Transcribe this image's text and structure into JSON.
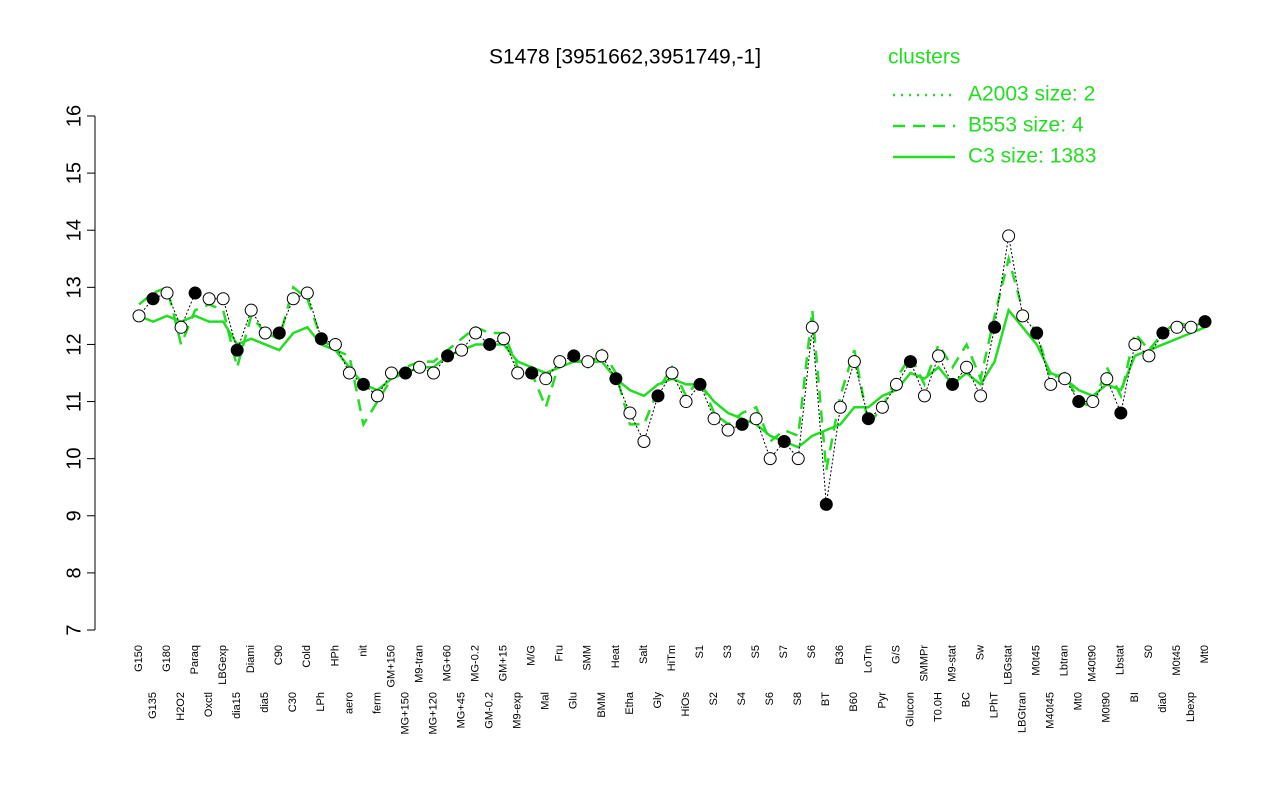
{
  "chart_data": {
    "type": "line",
    "title": "S1478 [3951662,3951749,-1]",
    "legend_title": "clusters",
    "legend_position": "top-right",
    "ylim": [
      7,
      16
    ],
    "yticks": [
      7,
      8,
      9,
      10,
      11,
      12,
      13,
      14,
      15,
      16
    ],
    "categories": [
      "G150",
      "G135",
      "G180",
      "H2O2",
      "Paraq",
      "Oxctl",
      "LBGexp",
      "dia15",
      "Diami",
      "dia5",
      "C90",
      "C30",
      "Cold",
      "LPh",
      "HPh",
      "aero",
      "nit",
      "ferm",
      "GM+150",
      "MG+150",
      "M9-tran",
      "MG+120",
      "MG+60",
      "MG+45",
      "MG-0.2",
      "GM-0.2",
      "GM+15",
      "M9-exp",
      "M/G",
      "Mal",
      "Fru",
      "Glu",
      "SMM",
      "BMM",
      "Heat",
      "Etha",
      "Salt",
      "Gly",
      "HiTm",
      "HiOs",
      "S1",
      "S2",
      "S3",
      "S4",
      "S5",
      "S6",
      "S7",
      "S8",
      "S6",
      "BT",
      "B36",
      "B60",
      "LoTm",
      "Pyr",
      "G/S",
      "Glucon",
      "SMMPr",
      "T0.0H",
      "M9-stat",
      "BC",
      "Sw",
      "LPhT",
      "LBGstat",
      "LBGtran",
      "M0t45",
      "M40t45",
      "Lbtran",
      "Mt0",
      "M40t90",
      "M0t90",
      "Lbstat",
      "BI",
      "S0",
      "dia0",
      "M0t45",
      "Lbexp",
      "Mt0"
    ],
    "values": [
      12.5,
      12.8,
      12.9,
      12.3,
      12.9,
      12.8,
      12.8,
      11.9,
      12.6,
      12.2,
      12.2,
      12.8,
      12.9,
      12.1,
      12.0,
      11.5,
      11.3,
      11.1,
      11.5,
      11.5,
      11.6,
      11.5,
      11.8,
      11.9,
      12.2,
      12.0,
      12.1,
      11.5,
      11.5,
      11.4,
      11.7,
      11.8,
      11.7,
      11.8,
      11.4,
      10.8,
      10.3,
      11.1,
      11.5,
      11.0,
      11.3,
      10.7,
      10.5,
      10.6,
      10.7,
      10.0,
      10.3,
      10.0,
      12.3,
      9.2,
      10.9,
      11.7,
      10.7,
      10.9,
      11.3,
      11.7,
      11.1,
      11.8,
      11.3,
      11.6,
      11.1,
      12.3,
      13.9,
      12.5,
      12.2,
      11.3,
      11.4,
      11.0,
      11.0,
      11.4,
      10.8,
      12.0,
      11.8,
      12.2,
      12.3,
      12.3,
      12.4
    ],
    "point_color": "#000000",
    "series": [
      {
        "name": "A2003 size: 2",
        "color": "#22dd22",
        "style": "dotted"
      },
      {
        "name": "B553 size: 4",
        "color": "#22dd22",
        "style": "dashed",
        "values": [
          12.7,
          12.9,
          13.0,
          12.0,
          12.6,
          12.7,
          12.6,
          11.6,
          12.5,
          12.2,
          12.1,
          13.0,
          12.8,
          12.1,
          11.9,
          11.8,
          10.6,
          11.0,
          11.4,
          11.6,
          11.7,
          11.7,
          11.9,
          12.1,
          12.3,
          12.2,
          12.2,
          11.6,
          11.5,
          10.9,
          11.7,
          11.8,
          11.6,
          11.9,
          11.5,
          10.6,
          10.6,
          11.2,
          11.6,
          11.1,
          11.4,
          10.8,
          10.6,
          10.8,
          10.9,
          10.3,
          10.5,
          10.4,
          12.6,
          9.8,
          11.1,
          11.9,
          10.6,
          10.9,
          11.4,
          11.8,
          11.3,
          12.0,
          11.6,
          12.0,
          11.4,
          12.5,
          13.5,
          12.6,
          12.2,
          11.4,
          11.5,
          11.0,
          10.9,
          11.6,
          11.1,
          12.2,
          11.9,
          12.2,
          12.4,
          12.3,
          12.4
        ]
      },
      {
        "name": "C3 size: 1383",
        "color": "#22dd22",
        "style": "solid",
        "values": [
          12.5,
          12.4,
          12.5,
          12.4,
          12.5,
          12.4,
          12.4,
          12.0,
          12.1,
          12.0,
          11.9,
          12.2,
          12.3,
          12.0,
          11.9,
          11.6,
          11.3,
          11.2,
          11.4,
          11.5,
          11.6,
          11.6,
          11.8,
          11.9,
          12.0,
          12.0,
          12.0,
          11.7,
          11.6,
          11.5,
          11.6,
          11.7,
          11.7,
          11.7,
          11.4,
          11.2,
          11.1,
          11.3,
          11.4,
          11.3,
          11.3,
          11.0,
          10.8,
          10.7,
          10.6,
          10.4,
          10.3,
          10.2,
          10.4,
          10.5,
          10.6,
          10.9,
          10.9,
          11.1,
          11.2,
          11.5,
          11.4,
          11.6,
          11.3,
          11.5,
          11.3,
          11.7,
          12.6,
          12.3,
          12.0,
          11.5,
          11.4,
          11.2,
          11.1,
          11.3,
          11.2,
          11.8,
          11.9,
          12.0,
          12.1,
          12.2,
          12.3
        ]
      }
    ]
  }
}
